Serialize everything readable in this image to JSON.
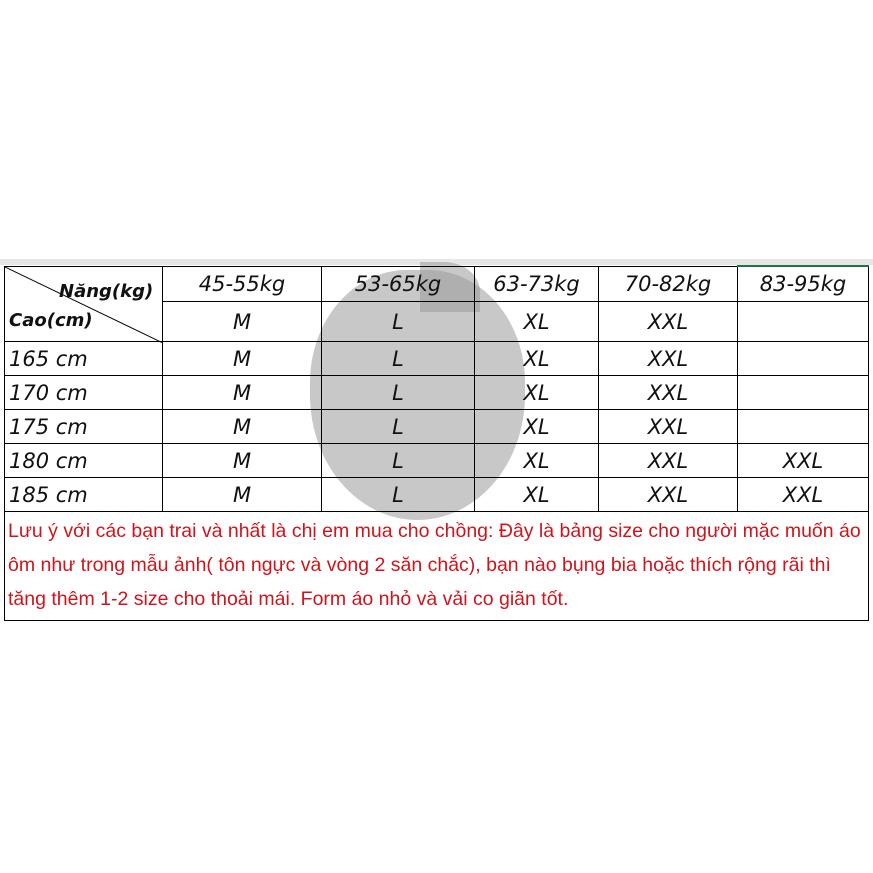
{
  "table": {
    "corner": {
      "weight_label": "Năng(kg)",
      "height_label": "Cao(cm)"
    },
    "weight_columns": [
      "45-55kg",
      "53-65kg",
      "63-73kg",
      "70-82kg",
      "83-95kg"
    ],
    "header_sizes": [
      "M",
      "L",
      "XL",
      "XXL",
      ""
    ],
    "rows": [
      {
        "height": "165 cm",
        "sizes": [
          "M",
          "L",
          "XL",
          "XXL",
          ""
        ]
      },
      {
        "height": "170 cm",
        "sizes": [
          "M",
          "L",
          "XL",
          "XXL",
          ""
        ]
      },
      {
        "height": "175 cm",
        "sizes": [
          "M",
          "L",
          "XL",
          "XXL",
          ""
        ]
      },
      {
        "height": "180 cm",
        "sizes": [
          "M",
          "L",
          "XL",
          "XXL",
          "XXL"
        ]
      },
      {
        "height": "185 cm",
        "sizes": [
          "M",
          "L",
          "XL",
          "XXL",
          "XXL"
        ]
      }
    ],
    "note": "Lưu ý với các bạn trai và nhất là chị em mua cho chồng: Đây là bảng size cho người mặc muốn áo ôm như trong mẫu ảnh( tôn ngực và vòng 2 săn chắc), bạn nào bụng bia hoặc thích rộng rãi thì tăng thêm 1-2 size cho thoải mái. Form áo nhỏ và vải co giãn tốt.",
    "note_color": "#d0141c",
    "selection_color": "#217346"
  }
}
